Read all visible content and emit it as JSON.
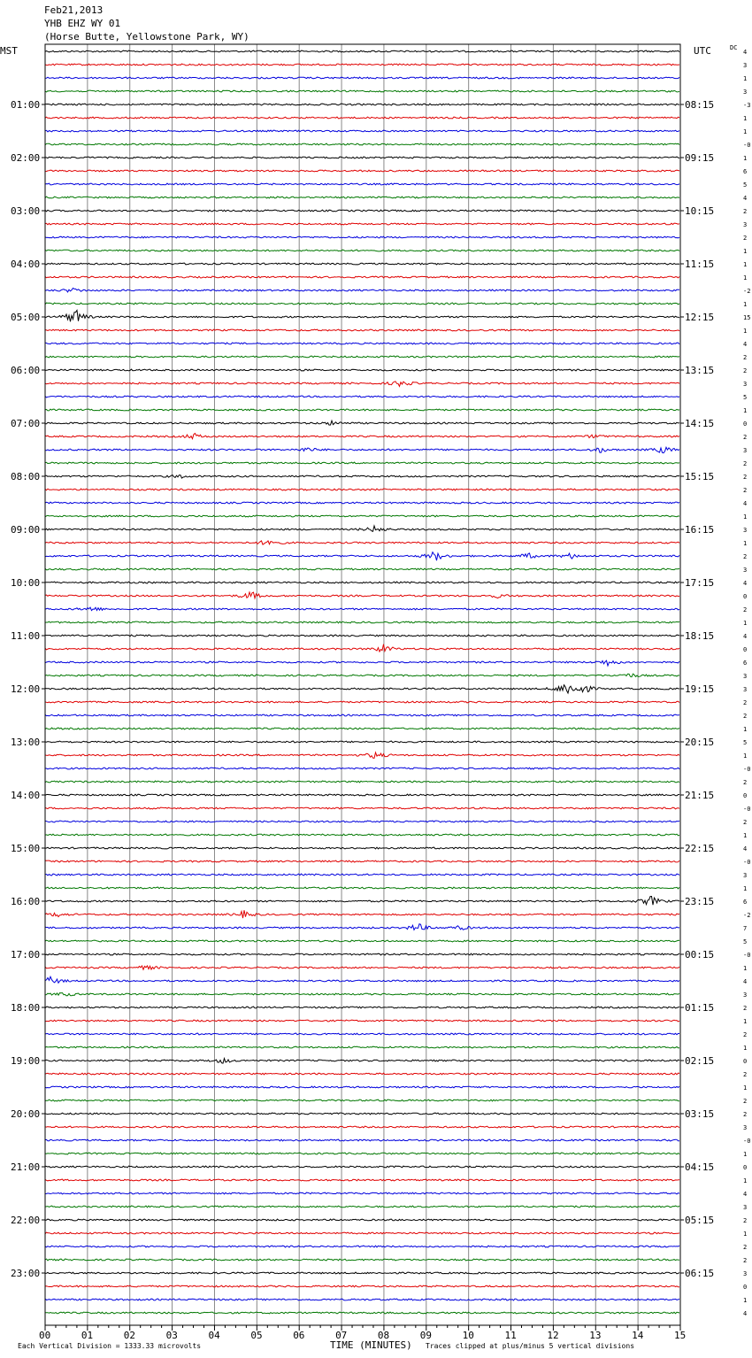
{
  "header": {
    "date": "Feb21,2013",
    "station": "YHB EHZ WY 01",
    "location": "(Horse Butte, Yellowstone Park, WY)"
  },
  "chart_data": {
    "type": "line",
    "left_axis_label": "MST",
    "right_axis_label": "UTC",
    "dc_label": "DC",
    "xlabel": "TIME (MINUTES)",
    "x_ticks": [
      "00",
      "01",
      "02",
      "03",
      "04",
      "05",
      "06",
      "07",
      "08",
      "09",
      "10",
      "11",
      "12",
      "13",
      "14",
      "15"
    ],
    "xlim": [
      0,
      15
    ],
    "trace_colors": [
      "#000000",
      "#e00000",
      "#0000dd",
      "#007700"
    ],
    "mst_labels": [
      "01:00",
      "02:00",
      "03:00",
      "04:00",
      "05:00",
      "06:00",
      "07:00",
      "08:00",
      "09:00",
      "10:00",
      "11:00",
      "12:00",
      "13:00",
      "14:00",
      "15:00",
      "16:00",
      "17:00",
      "18:00",
      "19:00",
      "20:00",
      "21:00",
      "22:00",
      "23:00"
    ],
    "utc_labels": [
      "08:15",
      "09:15",
      "10:15",
      "11:15",
      "12:15",
      "13:15",
      "14:15",
      "15:15",
      "16:15",
      "17:15",
      "18:15",
      "19:15",
      "20:15",
      "21:15",
      "22:15",
      "23:15",
      "00:15",
      "01:15",
      "02:15",
      "03:15",
      "04:15",
      "05:15",
      "06:15"
    ],
    "dc_offsets": [
      "4",
      "3",
      "1",
      "3",
      "-3",
      "1",
      "1",
      "-0",
      "1",
      "6",
      "5",
      "4",
      "2",
      "3",
      "2",
      "1",
      "1",
      "1",
      "-2",
      "1",
      "15",
      "1",
      "4",
      "2",
      "2",
      "3",
      "5",
      "1",
      "0",
      "2",
      "3",
      "2",
      "2",
      "2",
      "4",
      "1",
      "3",
      "1",
      "2",
      "3",
      "4",
      "0",
      "2",
      "1",
      "4",
      "0",
      "6",
      "3",
      "3",
      "2",
      "2",
      "1",
      "5",
      "1",
      "-0",
      "2",
      "0",
      "-0",
      "2",
      "1",
      "4",
      "-0",
      "3",
      "1",
      "6",
      "-2",
      "7",
      "5",
      "-0",
      "1",
      "4",
      "3",
      "2",
      "1",
      "2",
      "1",
      "0",
      "2",
      "1",
      "2",
      "2",
      "3",
      "-0",
      "1",
      "0",
      "1",
      "4",
      "3",
      "2",
      "1",
      "2",
      "2",
      "3",
      "0",
      "1",
      "4"
    ],
    "events": [
      {
        "trace": 18,
        "minute": 0.65,
        "amplitude": 2.5
      },
      {
        "trace": 20,
        "minute": 0.7,
        "amplitude": 10
      },
      {
        "trace": 25,
        "minute": 8.4,
        "amplitude": 4
      },
      {
        "trace": 28,
        "minute": 6.8,
        "amplitude": 2.5
      },
      {
        "trace": 29,
        "minute": 3.5,
        "amplitude": 3.5
      },
      {
        "trace": 29,
        "minute": 13.0,
        "amplitude": 2
      },
      {
        "trace": 30,
        "minute": 6.2,
        "amplitude": 2.5
      },
      {
        "trace": 30,
        "minute": 13.1,
        "amplitude": 3
      },
      {
        "trace": 30,
        "minute": 14.6,
        "amplitude": 4
      },
      {
        "trace": 32,
        "minute": 3.2,
        "amplitude": 2
      },
      {
        "trace": 36,
        "minute": 7.8,
        "amplitude": 4
      },
      {
        "trace": 37,
        "minute": 5.3,
        "amplitude": 4.5
      },
      {
        "trace": 38,
        "minute": 9.2,
        "amplitude": 6
      },
      {
        "trace": 38,
        "minute": 11.4,
        "amplitude": 3
      },
      {
        "trace": 38,
        "minute": 12.4,
        "amplitude": 3
      },
      {
        "trace": 41,
        "minute": 4.85,
        "amplitude": 5
      },
      {
        "trace": 41,
        "minute": 10.7,
        "amplitude": 2
      },
      {
        "trace": 42,
        "minute": 1.1,
        "amplitude": 3
      },
      {
        "trace": 45,
        "minute": 8.0,
        "amplitude": 5
      },
      {
        "trace": 46,
        "minute": 13.3,
        "amplitude": 4
      },
      {
        "trace": 47,
        "minute": 13.8,
        "amplitude": 2.5
      },
      {
        "trace": 48,
        "minute": 12.3,
        "amplitude": 8
      },
      {
        "trace": 48,
        "minute": 12.7,
        "amplitude": 6
      },
      {
        "trace": 53,
        "minute": 7.8,
        "amplitude": 4
      },
      {
        "trace": 64,
        "minute": 14.3,
        "amplitude": 6
      },
      {
        "trace": 65,
        "minute": 4.7,
        "amplitude": 4
      },
      {
        "trace": 65,
        "minute": 0.3,
        "amplitude": 2.5
      },
      {
        "trace": 66,
        "minute": 8.8,
        "amplitude": 5
      },
      {
        "trace": 66,
        "minute": 9.8,
        "amplitude": 2.5
      },
      {
        "trace": 69,
        "minute": 2.4,
        "amplitude": 2.5
      },
      {
        "trace": 70,
        "minute": 0.15,
        "amplitude": 5
      },
      {
        "trace": 71,
        "minute": 0.5,
        "amplitude": 2
      },
      {
        "trace": 76,
        "minute": 4.2,
        "amplitude": 3
      }
    ]
  },
  "footer": {
    "division_note": "Each Vertical Division = 1333.33 microvolts",
    "clip_note": "Traces clipped at plus/minus 5 vertical divisions"
  }
}
